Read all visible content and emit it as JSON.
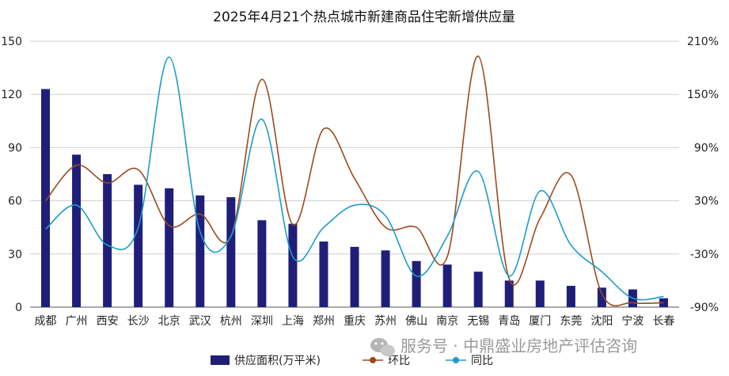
{
  "chart_data": {
    "type": "bar",
    "title": "2025年4月21个热点城市新建商品住宅新增供应量",
    "categories": [
      "成都",
      "广州",
      "西安",
      "长沙",
      "北京",
      "武汉",
      "杭州",
      "深圳",
      "上海",
      "郑州",
      "重庆",
      "苏州",
      "佛山",
      "南京",
      "无锡",
      "青岛",
      "厦门",
      "东莞",
      "沈阳",
      "宁波",
      "长春"
    ],
    "left_axis": {
      "ticks": [
        "0",
        "30",
        "60",
        "90",
        "120",
        "150"
      ],
      "ylim": [
        0,
        150
      ]
    },
    "right_axis": {
      "ticks": [
        "-90%",
        "-30%",
        "30%",
        "90%",
        "150%",
        "210%"
      ],
      "ylim": [
        -90,
        210
      ]
    },
    "grid": true,
    "legend_position": "bottom",
    "series": [
      {
        "name": "供应面积(万平米)",
        "type": "bar",
        "axis": "left",
        "color": "#1f1f7a",
        "values": [
          123,
          86,
          75,
          69,
          67,
          63,
          62,
          49,
          47,
          37,
          34,
          32,
          26,
          24,
          20,
          15,
          15,
          12,
          11,
          10,
          5
        ]
      },
      {
        "name": "环比",
        "type": "line",
        "axis": "right",
        "color": "#9b4a1e",
        "values": [
          30,
          70,
          50,
          65,
          2,
          15,
          -10,
          167,
          3,
          111,
          55,
          0,
          0,
          -33,
          193,
          -58,
          10,
          59,
          -75,
          -85,
          -85
        ]
      },
      {
        "name": "同比",
        "type": "line",
        "axis": "right",
        "color": "#1e9bc8",
        "values": [
          -2,
          25,
          -20,
          0,
          192,
          -5,
          -10,
          122,
          -33,
          0,
          25,
          13,
          -55,
          -10,
          63,
          -55,
          41,
          -20,
          -50,
          -80,
          -78
        ]
      }
    ]
  },
  "watermark": {
    "text": "服务号 · 中鼎盛业房地产评估咨询",
    "icon": "wechat-icon"
  }
}
